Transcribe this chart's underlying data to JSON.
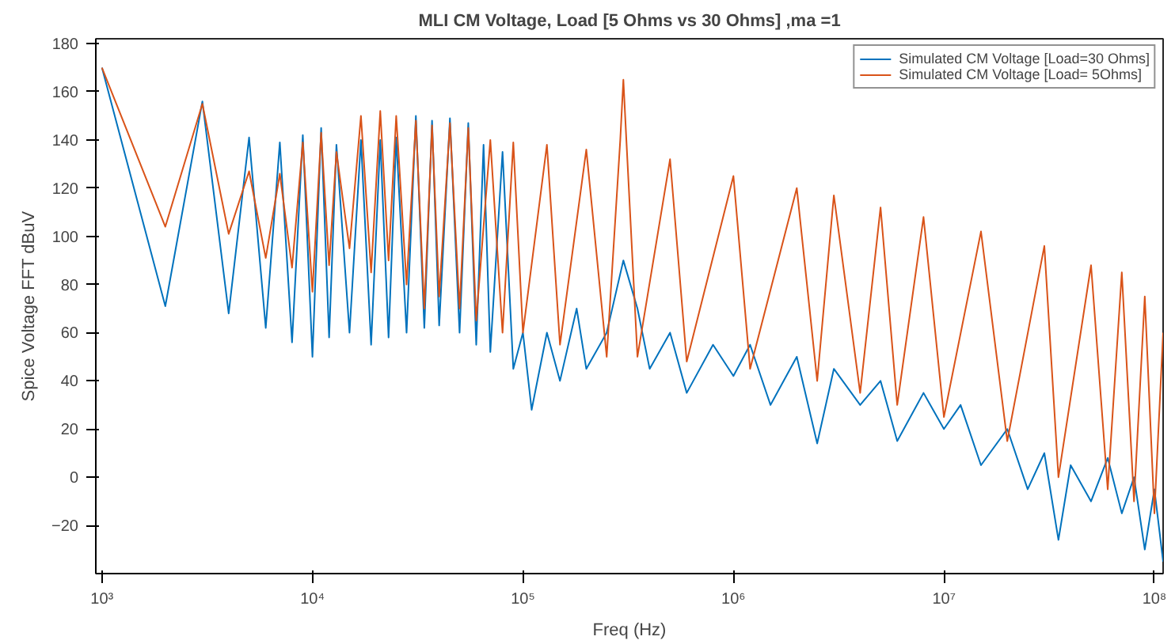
{
  "chart_data": {
    "type": "line",
    "title": "MLI CM Voltage, Load [5 Ohms vs 30 Ohms] ,ma =1",
    "xlabel": "Freq (Hz)",
    "ylabel": "Spice Voltage FFT dBuV",
    "log": "x",
    "grid": false,
    "legend": "top right",
    "line_style": "solid",
    "marker": "none",
    "xlim": [
      935,
      110000000
    ],
    "ylim": [
      -40,
      182
    ],
    "xticks": [
      {
        "value": 1000,
        "label": "10³"
      },
      {
        "value": 10000,
        "label": "10⁴"
      },
      {
        "value": 100000,
        "label": "10⁵"
      },
      {
        "value": 1000000,
        "label": "10⁶"
      },
      {
        "value": 10000000,
        "label": "10⁷"
      },
      {
        "value": 100000000,
        "label": "10⁸"
      }
    ],
    "yticks": [
      -20,
      0,
      20,
      40,
      60,
      80,
      100,
      120,
      140,
      160,
      180
    ],
    "series": [
      {
        "name": "Simulated CM Voltage [Load=30 Ohms]",
        "color": "#0072bd",
        "x": [
          1000,
          2000,
          3000,
          4000,
          5000,
          6000,
          7000,
          8000,
          9000,
          10000,
          11000,
          12000,
          13000,
          15000,
          17000,
          19000,
          21000,
          23000,
          25000,
          28000,
          31000,
          34000,
          37000,
          40000,
          45000,
          50000,
          55000,
          60000,
          65000,
          70000,
          80000,
          90000,
          100000,
          110000,
          130000,
          150000,
          180000,
          200000,
          250000,
          300000,
          350000,
          400000,
          500000,
          600000,
          800000,
          1000000,
          1200000,
          1500000,
          2000000,
          2500000,
          3000000,
          4000000,
          5000000,
          6000000,
          8000000,
          10000000,
          12000000,
          15000000,
          20000000,
          25000000,
          30000000,
          35000000,
          40000000,
          50000000,
          60000000,
          70000000,
          80000000,
          90000000,
          100000000,
          110000000
        ],
        "values": [
          170,
          71,
          156,
          68,
          141,
          62,
          139,
          56,
          142,
          50,
          145,
          58,
          138,
          60,
          140,
          55,
          140,
          58,
          141,
          60,
          150,
          62,
          148,
          63,
          149,
          60,
          147,
          55,
          138,
          52,
          135,
          45,
          60,
          28,
          60,
          40,
          70,
          45,
          60,
          90,
          70,
          45,
          60,
          35,
          55,
          42,
          55,
          30,
          50,
          14,
          45,
          30,
          40,
          15,
          35,
          20,
          30,
          5,
          20,
          -5,
          10,
          -26,
          5,
          -10,
          8,
          -15,
          0,
          -30,
          -5,
          -35
        ]
      },
      {
        "name": "Simulated CM Voltage [Load= 5Ohms]",
        "color": "#d95319",
        "x": [
          1000,
          2000,
          3000,
          4000,
          5000,
          6000,
          7000,
          8000,
          9000,
          10000,
          11000,
          12000,
          13000,
          15000,
          17000,
          19000,
          21000,
          23000,
          25000,
          28000,
          31000,
          34000,
          37000,
          40000,
          45000,
          50000,
          55000,
          60000,
          70000,
          80000,
          90000,
          100000,
          130000,
          150000,
          200000,
          250000,
          290000,
          300000,
          310000,
          350000,
          500000,
          600000,
          1000000,
          1200000,
          2000000,
          2500000,
          3000000,
          4000000,
          5000000,
          6000000,
          8000000,
          10000000,
          15000000,
          20000000,
          30000000,
          35000000,
          50000000,
          60000000,
          70000000,
          80000000,
          90000000,
          100000000,
          110000000
        ],
        "values": [
          170,
          104,
          155,
          101,
          127,
          91,
          126,
          87,
          139,
          77,
          143,
          88,
          135,
          95,
          150,
          85,
          152,
          90,
          150,
          80,
          148,
          70,
          146,
          75,
          147,
          70,
          145,
          65,
          140,
          60,
          139,
          60,
          138,
          55,
          136,
          50,
          140,
          165,
          140,
          50,
          132,
          48,
          125,
          45,
          120,
          40,
          117,
          35,
          112,
          30,
          108,
          25,
          102,
          15,
          96,
          0,
          88,
          -5,
          85,
          -10,
          75,
          -15,
          60
        ]
      }
    ]
  }
}
